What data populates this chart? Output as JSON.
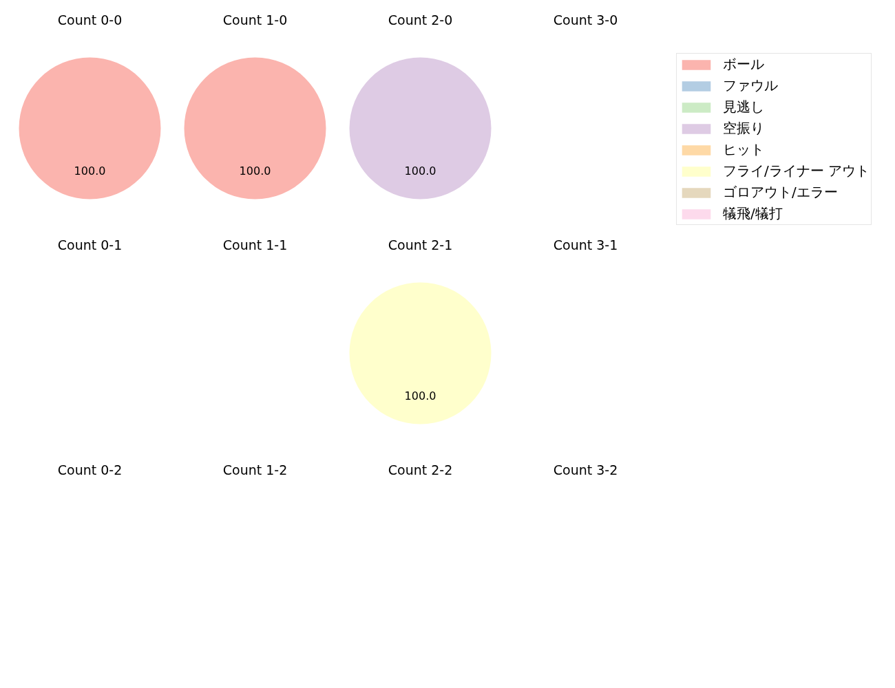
{
  "chart_data": [
    {
      "type": "pie",
      "title": "Count 0-0",
      "categories": [
        "ボール",
        "ファウル",
        "見逃し",
        "空振り",
        "ヒット",
        "フライ/ライナー アウト",
        "ゴロアウト/エラー",
        "犠飛/犠打"
      ],
      "values": [
        100,
        0,
        0,
        0,
        0,
        0,
        0,
        0
      ],
      "colors": [
        "#fbb4ae",
        "#b3cde3",
        "#ccebc5",
        "#decbe4",
        "#fed9a6",
        "#ffffcc",
        "#e5d8bd",
        "#fddaec"
      ],
      "value_labels": [
        "100.0",
        null,
        null,
        null,
        null,
        null,
        null,
        null
      ],
      "legend": "right"
    },
    {
      "type": "pie",
      "title": "Count 1-0",
      "values": [
        100
      ],
      "colors": [
        "#fbb4ae"
      ],
      "value_labels": [
        "100.0"
      ]
    },
    {
      "type": "pie",
      "title": "Count 2-0",
      "values": [
        100
      ],
      "colors": [
        "#decbe4"
      ],
      "value_labels": [
        "100.0"
      ]
    },
    {
      "type": "pie",
      "title": "Count 3-0"
    },
    {
      "type": "pie",
      "title": "Count 0-1"
    },
    {
      "type": "pie",
      "title": "Count 1-1"
    },
    {
      "type": "pie",
      "title": "Count 2-1",
      "values": [
        100
      ],
      "colors": [
        "#ffffcc"
      ],
      "value_labels": [
        "100.0"
      ]
    },
    {
      "type": "pie",
      "title": "Count 3-1"
    },
    {
      "type": "pie",
      "title": "Count 0-2"
    },
    {
      "type": "pie",
      "title": "Count 1-2"
    },
    {
      "type": "pie",
      "title": "Count 2-2"
    },
    {
      "type": "pie",
      "title": "Count 3-2"
    }
  ]
}
